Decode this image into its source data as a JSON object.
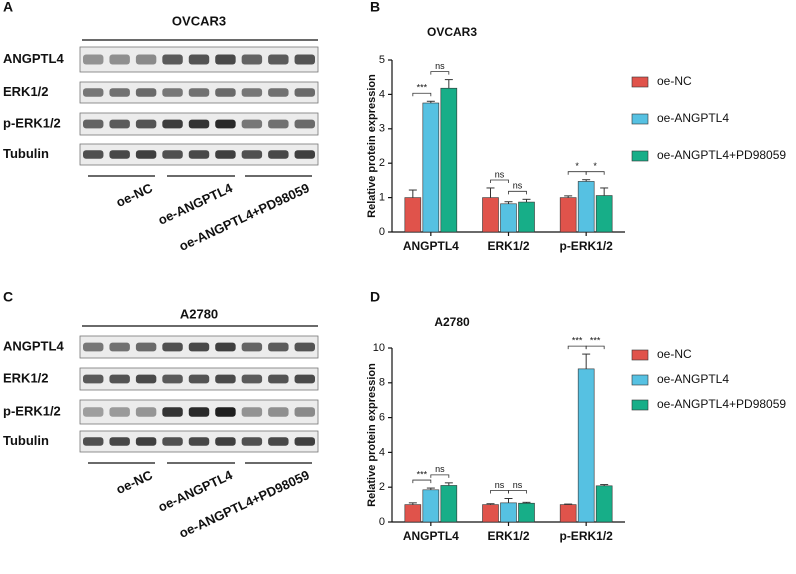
{
  "panels": [
    {
      "letter": "A",
      "cell_line": "OVCAR3",
      "rows": [
        "ANGPTL4",
        "ERK1/2",
        "p-ERK1/2",
        "Tubulin"
      ],
      "groups": [
        "oe-NC",
        "oe-ANGPTL4",
        "oe-ANGPTL4+PD98059"
      ]
    },
    {
      "letter": "C",
      "cell_line": "A2780",
      "rows": [
        "ANGPTL4",
        "ERK1/2",
        "p-ERK1/2",
        "Tubulin"
      ],
      "groups": [
        "oe-NC",
        "oe-ANGPTL4",
        "oe-ANGPTL4+PD98059"
      ]
    }
  ],
  "chart_data": [
    {
      "letter": "B",
      "type": "bar",
      "title": "OVCAR3",
      "y_label": "Relative protein expression",
      "categories": [
        "ANGPTL4",
        "ERK1/2",
        "p-ERK1/2"
      ],
      "series": [
        {
          "name": "oe-NC",
          "color": "#e0534b",
          "values": [
            1.0,
            1.0,
            1.0
          ],
          "errors": [
            0.22,
            0.28,
            0.05
          ]
        },
        {
          "name": "oe-ANGPTL4",
          "color": "#56c1e2",
          "values": [
            3.75,
            0.82,
            1.47
          ],
          "errors": [
            0.05,
            0.06,
            0.05
          ]
        },
        {
          "name": "oe-ANGPTL4+PD98059",
          "color": "#17ae88",
          "values": [
            4.18,
            0.87,
            1.06
          ],
          "errors": [
            0.25,
            0.08,
            0.22
          ]
        }
      ],
      "significance": [
        [
          "***",
          "ns"
        ],
        [
          "ns",
          "ns"
        ],
        [
          "*",
          "*"
        ]
      ],
      "ylim": [
        0,
        5
      ],
      "yticks": [
        0,
        1,
        2,
        3,
        4,
        5
      ],
      "legend": "right"
    },
    {
      "letter": "D",
      "type": "bar",
      "title": "A2780",
      "y_label": "Relative protein expression",
      "categories": [
        "ANGPTL4",
        "ERK1/2",
        "p-ERK1/2"
      ],
      "series": [
        {
          "name": "oe-NC",
          "color": "#e0534b",
          "values": [
            1.0,
            1.0,
            1.0
          ],
          "errors": [
            0.1,
            0.05,
            0.03
          ]
        },
        {
          "name": "oe-ANGPTL4",
          "color": "#56c1e2",
          "values": [
            1.85,
            1.1,
            8.8
          ],
          "errors": [
            0.1,
            0.25,
            0.85
          ]
        },
        {
          "name": "oe-ANGPTL4+PD98059",
          "color": "#17ae88",
          "values": [
            2.1,
            1.08,
            2.08
          ],
          "errors": [
            0.15,
            0.05,
            0.07
          ]
        }
      ],
      "significance": [
        [
          "***",
          "ns"
        ],
        [
          "ns",
          "ns"
        ],
        [
          "***",
          "***"
        ]
      ],
      "ylim": [
        0,
        10
      ],
      "yticks": [
        0,
        2,
        4,
        6,
        8,
        10
      ],
      "legend": "right"
    }
  ]
}
